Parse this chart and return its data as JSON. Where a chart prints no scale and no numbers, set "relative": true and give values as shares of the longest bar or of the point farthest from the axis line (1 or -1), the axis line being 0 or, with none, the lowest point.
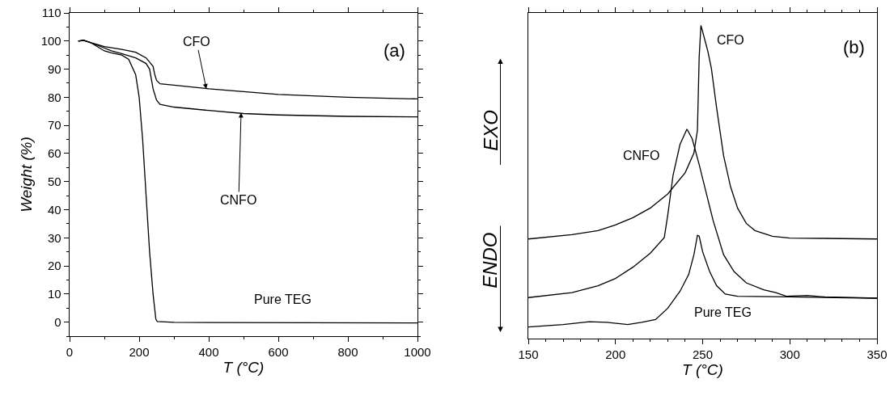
{
  "chart_data": [
    {
      "type": "line",
      "xlabel": "T (°C)",
      "ylabel": "Weight (%)",
      "xlim": [
        0,
        1000
      ],
      "xticks": [
        0,
        200,
        400,
        600,
        800,
        1000
      ],
      "ylim": [
        -5,
        110
      ],
      "yticks": [
        0,
        10,
        20,
        30,
        40,
        50,
        60,
        70,
        80,
        90,
        100,
        110
      ],
      "grid": false,
      "legend": false,
      "marker": "none",
      "line_style": "solid",
      "series": [
        {
          "color": "#000000",
          "x": [
            25,
            40,
            60,
            100,
            150,
            190,
            220,
            240,
            245,
            250,
            260,
            300,
            400,
            500,
            600,
            700,
            800,
            1000
          ],
          "values": [
            100,
            100.3,
            99.5,
            98,
            97,
            96,
            94,
            91,
            88,
            86,
            84.8,
            84.3,
            83,
            82,
            81,
            80.5,
            80,
            79.4
          ]
        },
        {
          "color": "#000000",
          "x": [
            25,
            40,
            80,
            120,
            150,
            190,
            220,
            230,
            240,
            250,
            260,
            300,
            400,
            500,
            600,
            800,
            1000
          ],
          "values": [
            100,
            100.3,
            98.5,
            96.5,
            95.5,
            94,
            92,
            90,
            83,
            79,
            77.5,
            76.5,
            75.3,
            74.2,
            73.7,
            73.2,
            73
          ]
        },
        {
          "color": "#000000",
          "x": [
            25,
            40,
            60,
            80,
            100,
            120,
            150,
            170,
            190,
            200,
            210,
            220,
            230,
            240,
            248,
            252,
            300,
            1000
          ],
          "values": [
            100,
            100.2,
            99.5,
            98,
            96.5,
            95.8,
            95,
            93.5,
            88,
            80,
            65,
            45,
            25,
            10,
            1,
            0.2,
            -0.1,
            -0.3
          ]
        }
      ],
      "annotations": [
        {
          "text": "CFO",
          "x": 393,
          "y": 83
        },
        {
          "text": "CNFO",
          "x": 493,
          "y": 74.5
        },
        "Pure TEG",
        "(a)"
      ]
    },
    {
      "type": "line",
      "xlabel": "T (°C)",
      "xlim": [
        150,
        350
      ],
      "xticks": [
        150,
        200,
        250,
        300,
        350
      ],
      "relative": true,
      "tick_labels": "x",
      "grid": false,
      "legend": false,
      "marker": "none",
      "line_style": "solid",
      "series": [
        {
          "color": "#000000",
          "x": [
            150,
            175,
            190,
            200,
            210,
            220,
            230,
            240,
            245,
            247,
            248,
            249,
            250,
            253,
            255,
            258,
            262,
            266,
            270,
            275,
            280,
            290,
            300,
            320,
            350
          ],
          "values": [
            0.318,
            0.332,
            0.345,
            0.363,
            0.386,
            0.417,
            0.462,
            0.53,
            0.593,
            0.665,
            0.899,
            1,
            0.98,
            0.917,
            0.863,
            0.737,
            0.584,
            0.485,
            0.417,
            0.368,
            0.345,
            0.327,
            0.321,
            0.32,
            0.318
          ]
        },
        {
          "color": "#000000",
          "x": [
            150,
            175,
            190,
            200,
            210,
            220,
            228,
            230,
            233,
            237,
            241,
            244,
            248,
            252,
            256,
            262,
            268,
            275,
            285,
            292,
            298,
            310,
            320,
            350
          ],
          "values": [
            0.131,
            0.147,
            0.169,
            0.192,
            0.228,
            0.273,
            0.323,
            0.395,
            0.521,
            0.62,
            0.669,
            0.638,
            0.556,
            0.466,
            0.377,
            0.268,
            0.214,
            0.178,
            0.156,
            0.147,
            0.135,
            0.138,
            0.133,
            0.129
          ]
        },
        {
          "color": "#000000",
          "x": [
            150,
            170,
            185,
            195,
            207,
            215,
            223,
            230,
            237,
            242,
            245,
            247,
            248,
            250,
            254,
            258,
            263,
            270,
            300,
            350
          ],
          "values": [
            0.037,
            0.045,
            0.054,
            0.052,
            0.045,
            0.052,
            0.061,
            0.097,
            0.151,
            0.205,
            0.268,
            0.33,
            0.327,
            0.277,
            0.214,
            0.169,
            0.142,
            0.135,
            0.133,
            0.129
          ]
        }
      ],
      "annotations": [
        "CFO",
        "CNFO",
        "Pure TEG",
        "(b)",
        "EXO",
        "ENDO"
      ]
    }
  ]
}
